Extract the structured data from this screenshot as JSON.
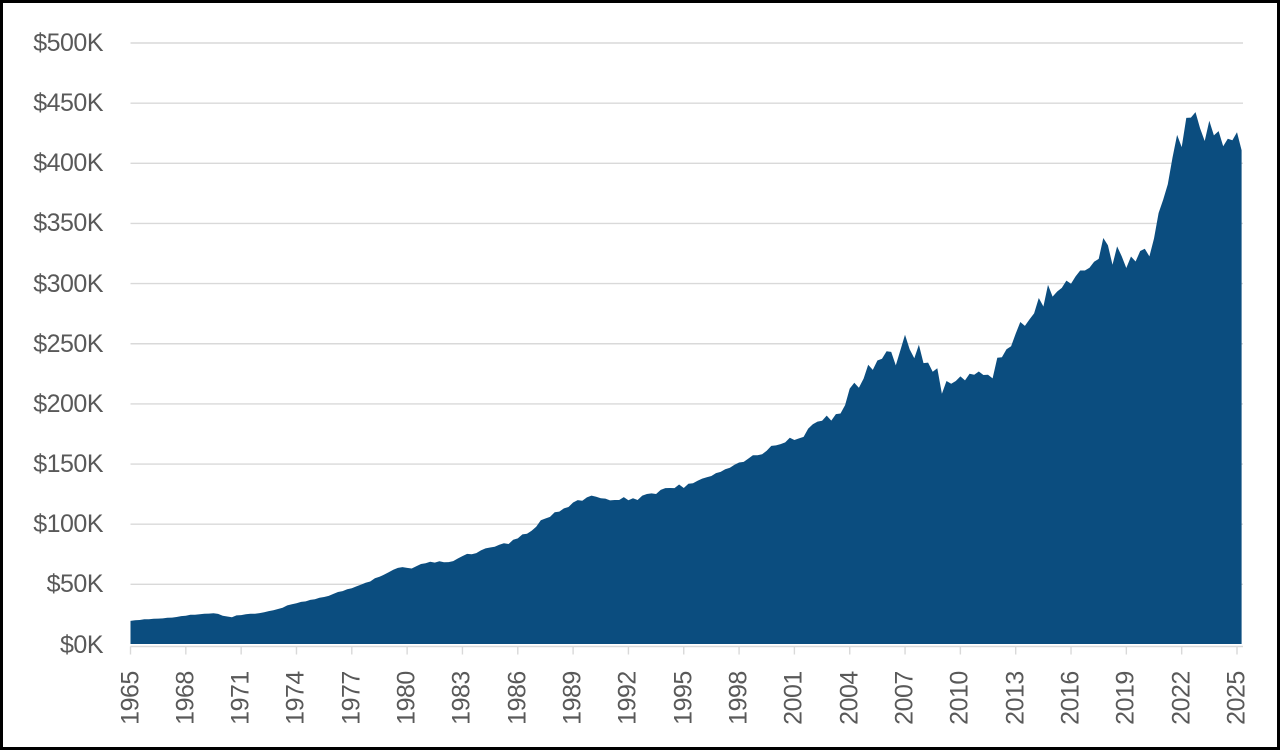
{
  "chart_data": {
    "type": "area",
    "title": "",
    "xlabel": "",
    "ylabel": "",
    "legend": "none",
    "grid": "horizontal",
    "frequency": "quarterly",
    "x_start_year": 1965,
    "x_end": 2025.25,
    "ylim": [
      0,
      500
    ],
    "y_unit": "USD thousands",
    "y_tick_values": [
      0,
      50,
      100,
      150,
      200,
      250,
      300,
      350,
      400,
      450,
      500
    ],
    "y_tick_labels": [
      "$0K",
      "$50K",
      "$100K",
      "$150K",
      "$200K",
      "$250K",
      "$300K",
      "$350K",
      "$400K",
      "$450K",
      "$500K"
    ],
    "x_tick_years": [
      1965,
      1968,
      1971,
      1974,
      1977,
      1980,
      1983,
      1986,
      1989,
      1992,
      1995,
      1998,
      2001,
      2004,
      2007,
      2010,
      2013,
      2016,
      2019,
      2022,
      2025
    ],
    "x_tick_labels": [
      "1965",
      "1968",
      "1971",
      "1974",
      "1977",
      "1980",
      "1983",
      "1986",
      "1989",
      "1992",
      "1995",
      "1998",
      "2001",
      "2004",
      "2007",
      "2010",
      "2013",
      "2016",
      "2019",
      "2022",
      "2025"
    ],
    "values": [
      19.6,
      20.2,
      20.4,
      21.0,
      21.0,
      21.4,
      21.5,
      21.7,
      22.2,
      22.4,
      22.9,
      23.6,
      23.9,
      24.7,
      24.7,
      25.1,
      25.6,
      25.7,
      25.9,
      25.4,
      23.9,
      23.3,
      22.7,
      24.2,
      24.4,
      25.1,
      25.5,
      25.5,
      26.1,
      26.8,
      27.8,
      28.5,
      29.5,
      30.6,
      32.5,
      33.4,
      34.3,
      35.4,
      35.8,
      37.1,
      37.6,
      38.9,
      39.5,
      40.4,
      42.1,
      43.6,
      44.4,
      45.9,
      46.8,
      48.3,
      49.8,
      51.4,
      52.4,
      55.1,
      56.3,
      58.1,
      60.0,
      62.1,
      63.7,
      64.3,
      63.7,
      63.2,
      65.1,
      66.9,
      67.5,
      68.8,
      68.1,
      69.2,
      68.3,
      68.5,
      69.3,
      71.5,
      73.5,
      75.3,
      75.0,
      76.0,
      78.2,
      79.9,
      80.6,
      81.3,
      82.9,
      84.1,
      83.5,
      87.0,
      88.2,
      91.5,
      92.1,
      94.6,
      97.9,
      103.3,
      104.7,
      106.1,
      110.0,
      110.5,
      113.1,
      114.3,
      118.0,
      120.0,
      119.5,
      122.3,
      123.8,
      122.9,
      121.5,
      121.3,
      119.8,
      120.1,
      120.1,
      122.5,
      119.9,
      121.6,
      120.1,
      123.8,
      125.1,
      125.6,
      125.1,
      128.5,
      130.0,
      130.1,
      130.0,
      133.0,
      130.1,
      133.6,
      134.1,
      136.1,
      137.9,
      139.1,
      140.1,
      142.5,
      143.5,
      145.6,
      147.0,
      149.5,
      151.3,
      151.8,
      154.5,
      157.3,
      157.3,
      158.1,
      161.0,
      165.1,
      165.5,
      166.6,
      168.0,
      171.8,
      170.0,
      171.3,
      172.6,
      179.5,
      183.1,
      185.3,
      186.0,
      190.3,
      186.1,
      191.5,
      192.0,
      199.0,
      212.7,
      217.6,
      213.5,
      221.0,
      232.5,
      228.3,
      236.1,
      237.5,
      243.8,
      243.2,
      232.0,
      244.7,
      257.4,
      245.3,
      238.0,
      249.1,
      233.9,
      234.3,
      226.8,
      229.6,
      208.4,
      219.0,
      216.7,
      219.0,
      222.9,
      219.5,
      225.0,
      224.3,
      226.9,
      224.0,
      224.3,
      221.2,
      238.4,
      238.7,
      245.4,
      248.0,
      258.4,
      268.1,
      264.8,
      270.2,
      275.2,
      288.0,
      281.0,
      298.9,
      289.2,
      293.4,
      296.4,
      302.5,
      299.8,
      306.0,
      310.9,
      310.9,
      313.1,
      318.2,
      320.5,
      337.9,
      331.8,
      315.6,
      330.9,
      322.8,
      313.0,
      322.5,
      318.4,
      327.1,
      329.0,
      322.6,
      337.5,
      358.7,
      369.8,
      382.6,
      404.7,
      423.6,
      413.5,
      437.7,
      438.0,
      442.6,
      429.0,
      418.5,
      435.3,
      423.2,
      426.8,
      414.2,
      420.4,
      419.2,
      425.8,
      410.8
    ],
    "colors": {
      "area_fill": "#0b4d7f",
      "gridline": "#d9d9d9",
      "axis_line": "#d9d9d9",
      "tick_label": "#595959",
      "background": "#ffffff",
      "frame_border": "#000000"
    }
  }
}
